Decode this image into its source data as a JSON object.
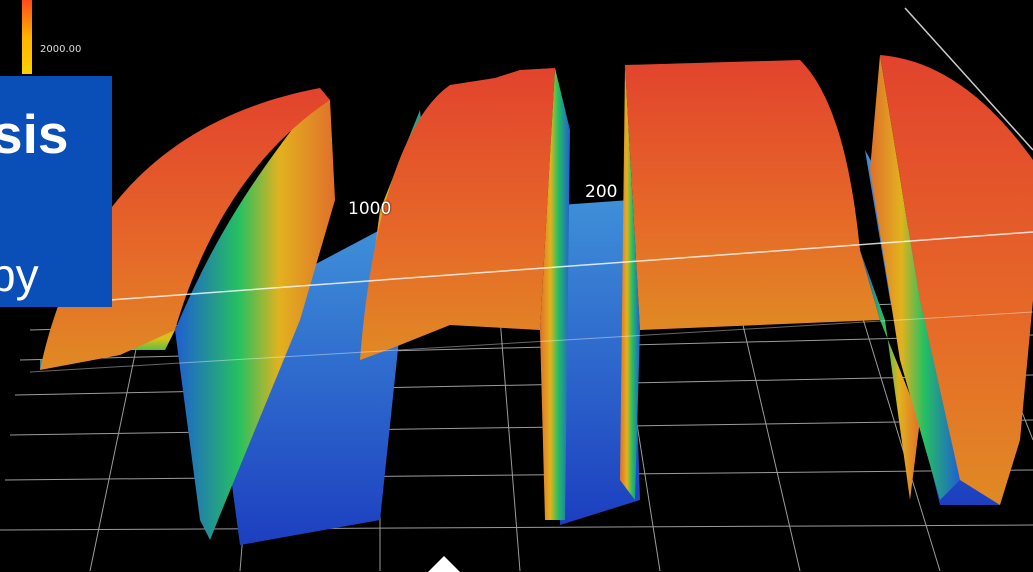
{
  "scale": {
    "top_label": "2000.00",
    "colors": [
      "#ff4a1a",
      "#ffb300",
      "#ffd000"
    ]
  },
  "brand": {
    "word_1": "sis",
    "word_2": "py",
    "color": "#0a4fb8"
  },
  "axis": {
    "tick_1": "1000",
    "tick_2": "200"
  },
  "surface_colors": {
    "high": "#e8502e",
    "mid_high": "#e3891f",
    "mid": "#d9c21a",
    "mid_low": "#22c25a",
    "low": "#1e6ad8",
    "floor": "#1948c8"
  }
}
